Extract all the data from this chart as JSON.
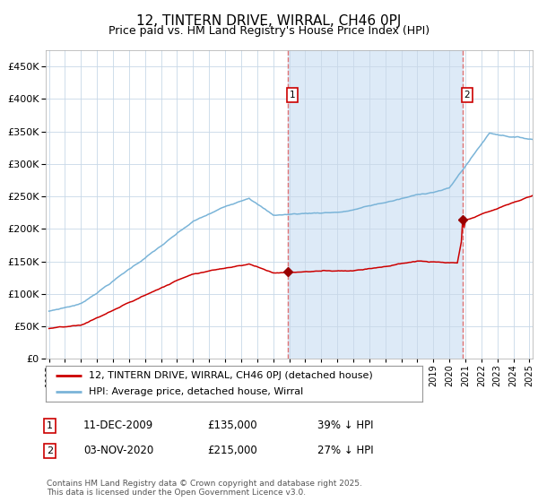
{
  "title": "12, TINTERN DRIVE, WIRRAL, CH46 0PJ",
  "subtitle": "Price paid vs. HM Land Registry's House Price Index (HPI)",
  "title_fontsize": 11,
  "subtitle_fontsize": 9,
  "background_color": "#ffffff",
  "plot_bg_color": "#ffffff",
  "shaded_region_color": "#ddeaf7",
  "grid_color": "#c8d8e8",
  "hpi_color": "#7ab4d8",
  "price_color": "#cc0000",
  "marker_color": "#990000",
  "vline_color": "#dd6666",
  "ylim": [
    0,
    475000
  ],
  "yticks": [
    0,
    50000,
    100000,
    150000,
    200000,
    250000,
    300000,
    350000,
    400000,
    450000
  ],
  "ytick_labels": [
    "£0",
    "£50K",
    "£100K",
    "£150K",
    "£200K",
    "£250K",
    "£300K",
    "£350K",
    "£400K",
    "£450K"
  ],
  "start_year": 1995,
  "end_year": 2025,
  "marker1_year": 2009.92,
  "marker2_year": 2020.84,
  "marker1_price": 135000,
  "marker2_price": 215000,
  "marker1_label": "1",
  "marker2_label": "2",
  "legend_line1": "12, TINTERN DRIVE, WIRRAL, CH46 0PJ (detached house)",
  "legend_line2": "HPI: Average price, detached house, Wirral",
  "ann1_date": "11-DEC-2009",
  "ann1_price": "£135,000",
  "ann1_pct": "39% ↓ HPI",
  "ann2_date": "03-NOV-2020",
  "ann2_price": "£215,000",
  "ann2_pct": "27% ↓ HPI",
  "footer": "Contains HM Land Registry data © Crown copyright and database right 2025.\nThis data is licensed under the Open Government Licence v3.0."
}
